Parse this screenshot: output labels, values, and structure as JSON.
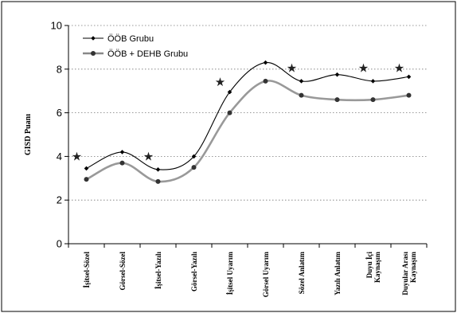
{
  "chart_data": {
    "type": "line",
    "title": "",
    "xlabel": "",
    "ylabel": "GISD Puanı",
    "ylim": [
      0,
      10
    ],
    "yticks": [
      0,
      2,
      4,
      6,
      8,
      10
    ],
    "grid": "horizontal-dotted",
    "legend_position": "top-left",
    "categories": [
      [
        "İşitsel-Sözel"
      ],
      [
        "Görsel-Sözel"
      ],
      [
        "İşitsel-Yazılı"
      ],
      [
        "Görsel-Yazılı"
      ],
      [
        "İşitsel Uyarım"
      ],
      [
        "Görsel Uyarım"
      ],
      [
        "Sözel Anlatım"
      ],
      [
        "Yazılı Anlatım"
      ],
      [
        "Duyu İçi",
        "Kaynaşım"
      ],
      [
        "Duyular Arası",
        "Kaynaşım"
      ]
    ],
    "series": [
      {
        "name": "ÖÖB Grubu",
        "color": "#000000",
        "marker": "diamond",
        "values": [
          3.45,
          4.2,
          3.4,
          4.0,
          6.95,
          8.3,
          7.45,
          7.75,
          7.45,
          7.65
        ]
      },
      {
        "name": "ÖÖB + DEHB Grubu",
        "color": "#999999",
        "marker": "circle",
        "values": [
          2.95,
          3.7,
          2.85,
          3.5,
          6.0,
          7.45,
          6.8,
          6.6,
          6.6,
          6.8
        ]
      }
    ],
    "annotations": {
      "symbol": "★",
      "positions": [
        {
          "category_index": 0,
          "y": 4.0
        },
        {
          "category_index": 2,
          "y": 4.0
        },
        {
          "category_index": 4,
          "y": 7.4
        },
        {
          "category_index": 6,
          "y": 8.05
        },
        {
          "category_index": 8,
          "y": 8.05
        },
        {
          "category_index": 9,
          "y": 8.05
        }
      ]
    }
  }
}
